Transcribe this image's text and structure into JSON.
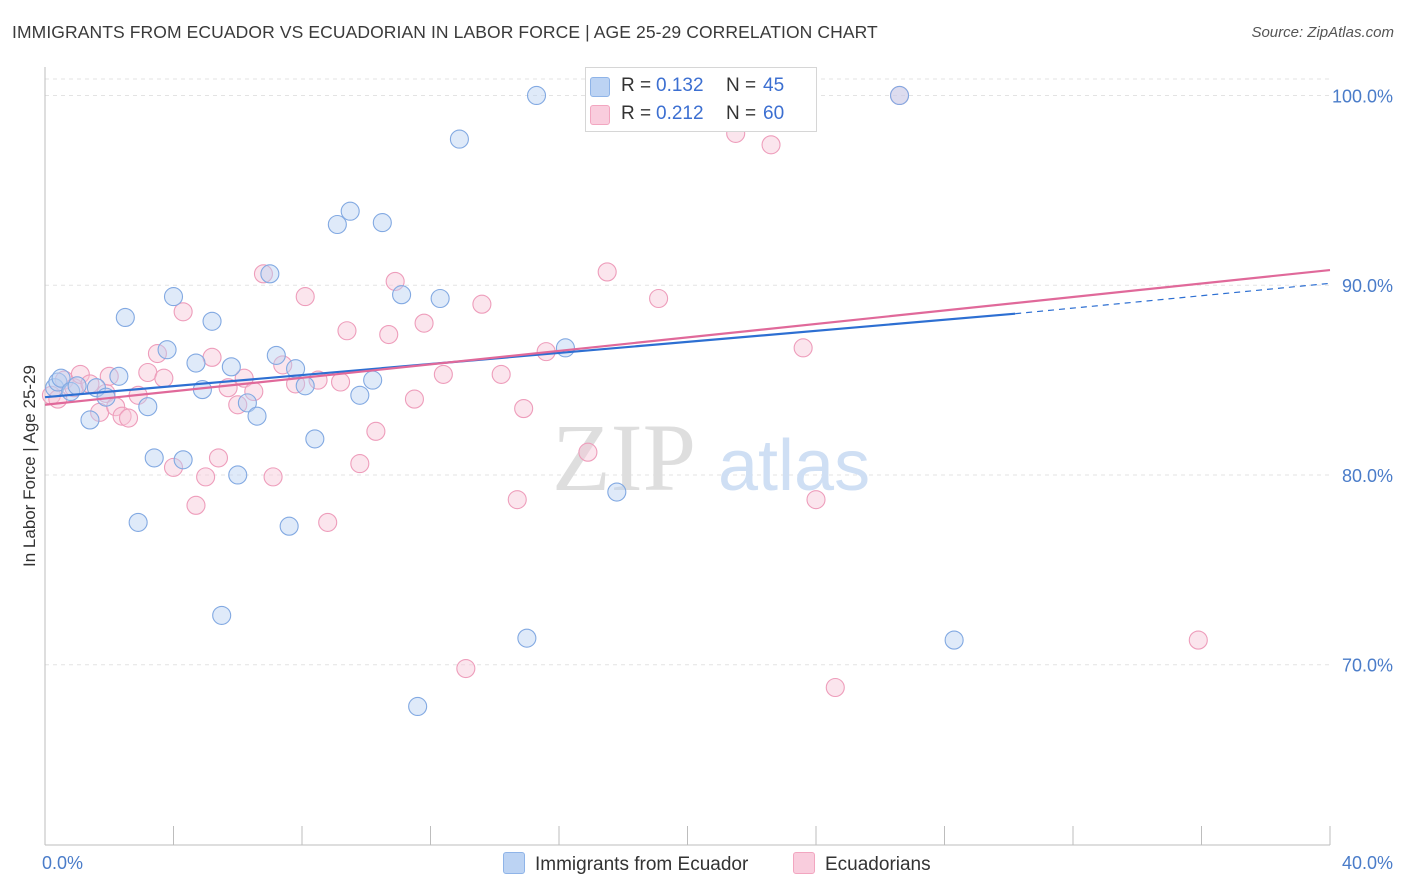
{
  "title": "IMMIGRANTS FROM ECUADOR VS ECUADORIAN IN LABOR FORCE | AGE 25-29 CORRELATION CHART",
  "source": "Source: ZipAtlas.com",
  "watermark": {
    "zip": "ZIP",
    "atlas": "atlas"
  },
  "legend": {
    "r_label": "R =",
    "n_label": "N =",
    "series": [
      {
        "name": "Immigrants from Ecuador",
        "r": "0.132",
        "n": "45"
      },
      {
        "name": "Ecuadorians",
        "r": "0.212",
        "n": "60"
      }
    ]
  },
  "chart_data": {
    "type": "scatter",
    "title": "IMMIGRANTS FROM ECUADOR VS ECUADORIAN IN LABOR FORCE | AGE 25-29 CORRELATION CHART",
    "xlabel": "",
    "ylabel": "In Labor Force | Age 25-29",
    "xlim": [
      0,
      40
    ],
    "ylim": [
      60.5,
      101.5
    ],
    "x_tick_labels": [
      "0.0%",
      "40.0%"
    ],
    "y_ticks": [
      70,
      80,
      90,
      100
    ],
    "y_tick_labels": [
      "70.0%",
      "80.0%",
      "90.0%",
      "100.0%"
    ],
    "grid": true,
    "legend_position": "top-center",
    "colors": {
      "Immigrants from Ecuador": "#8fb4e8",
      "Ecuadorians": "#f2a6c0",
      "blue_line": "#2d6fd2",
      "pink_line": "#e0699a",
      "tick_text": "#4a7cc9"
    },
    "series": [
      {
        "name": "Immigrants from Ecuador",
        "r": 0.132,
        "n": 45,
        "trend": {
          "x": [
            0,
            30.2
          ],
          "y": [
            84.1,
            88.5
          ],
          "dashed_to": [
            40,
            90.1
          ]
        },
        "points": [
          [
            0.3,
            84.6
          ],
          [
            0.4,
            84.9
          ],
          [
            0.5,
            85.1
          ],
          [
            0.8,
            84.4
          ],
          [
            1.0,
            84.7
          ],
          [
            1.4,
            82.9
          ],
          [
            1.6,
            84.6
          ],
          [
            1.9,
            84.1
          ],
          [
            2.3,
            85.2
          ],
          [
            2.5,
            88.3
          ],
          [
            2.9,
            77.5
          ],
          [
            3.2,
            83.6
          ],
          [
            3.4,
            80.9
          ],
          [
            3.8,
            86.6
          ],
          [
            4.0,
            89.4
          ],
          [
            4.3,
            80.8
          ],
          [
            4.7,
            85.9
          ],
          [
            4.9,
            84.5
          ],
          [
            5.2,
            88.1
          ],
          [
            5.5,
            72.6
          ],
          [
            5.8,
            85.7
          ],
          [
            6.0,
            80.0
          ],
          [
            6.3,
            83.8
          ],
          [
            6.6,
            83.1
          ],
          [
            7.0,
            90.6
          ],
          [
            7.2,
            86.3
          ],
          [
            7.6,
            77.3
          ],
          [
            7.8,
            85.6
          ],
          [
            8.1,
            84.7
          ],
          [
            8.4,
            81.9
          ],
          [
            9.1,
            93.2
          ],
          [
            9.5,
            93.9
          ],
          [
            9.8,
            84.2
          ],
          [
            10.2,
            85.0
          ],
          [
            10.5,
            93.3
          ],
          [
            11.1,
            89.5
          ],
          [
            11.6,
            67.8
          ],
          [
            12.3,
            89.3
          ],
          [
            12.9,
            97.7
          ],
          [
            15.0,
            71.4
          ],
          [
            15.3,
            100.0
          ],
          [
            16.2,
            86.7
          ],
          [
            17.8,
            79.1
          ],
          [
            26.6,
            100.0
          ],
          [
            28.3,
            71.3
          ]
        ]
      },
      {
        "name": "Ecuadorians",
        "r": 0.212,
        "n": 60,
        "trend": {
          "x": [
            0,
            40
          ],
          "y": [
            83.7,
            90.8
          ]
        },
        "points": [
          [
            0.2,
            84.2
          ],
          [
            0.4,
            84.0
          ],
          [
            0.6,
            85.0
          ],
          [
            0.9,
            84.6
          ],
          [
            1.1,
            85.3
          ],
          [
            1.4,
            84.8
          ],
          [
            1.7,
            83.3
          ],
          [
            1.9,
            84.3
          ],
          [
            2.0,
            85.2
          ],
          [
            2.2,
            83.6
          ],
          [
            2.4,
            83.1
          ],
          [
            2.6,
            83.0
          ],
          [
            2.9,
            84.2
          ],
          [
            3.2,
            85.4
          ],
          [
            3.5,
            86.4
          ],
          [
            3.7,
            85.1
          ],
          [
            4.0,
            80.4
          ],
          [
            4.3,
            88.6
          ],
          [
            4.7,
            78.4
          ],
          [
            5.0,
            79.9
          ],
          [
            5.2,
            86.2
          ],
          [
            5.4,
            80.9
          ],
          [
            5.7,
            84.6
          ],
          [
            6.0,
            83.7
          ],
          [
            6.2,
            85.1
          ],
          [
            6.5,
            84.4
          ],
          [
            6.8,
            90.6
          ],
          [
            7.1,
            79.9
          ],
          [
            7.4,
            85.8
          ],
          [
            7.8,
            84.8
          ],
          [
            8.1,
            89.4
          ],
          [
            8.5,
            85.0
          ],
          [
            8.8,
            77.5
          ],
          [
            9.2,
            84.9
          ],
          [
            9.4,
            87.6
          ],
          [
            9.8,
            80.6
          ],
          [
            10.3,
            82.3
          ],
          [
            10.7,
            87.4
          ],
          [
            10.9,
            90.2
          ],
          [
            11.5,
            84.0
          ],
          [
            11.8,
            88.0
          ],
          [
            12.4,
            85.3
          ],
          [
            13.1,
            69.8
          ],
          [
            13.6,
            89.0
          ],
          [
            14.2,
            85.3
          ],
          [
            14.7,
            78.7
          ],
          [
            14.9,
            83.5
          ],
          [
            15.6,
            86.5
          ],
          [
            16.9,
            81.2
          ],
          [
            17.5,
            90.7
          ],
          [
            19.1,
            89.3
          ],
          [
            20.5,
            100.0
          ],
          [
            21.5,
            98.0
          ],
          [
            21.8,
            100.0
          ],
          [
            22.6,
            97.4
          ],
          [
            23.6,
            86.7
          ],
          [
            24.0,
            78.7
          ],
          [
            24.6,
            68.8
          ],
          [
            26.6,
            100.0
          ],
          [
            35.9,
            71.3
          ]
        ]
      }
    ]
  }
}
